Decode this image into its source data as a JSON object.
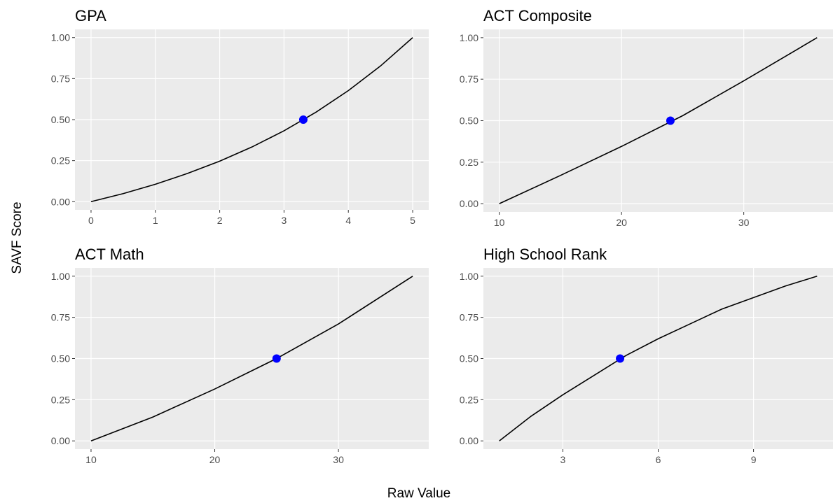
{
  "y_label": "SAVF Score",
  "x_label": "Raw Value",
  "chart_data": [
    {
      "type": "line",
      "title": "GPA",
      "x": [
        0,
        0.5,
        1,
        1.5,
        2,
        2.5,
        3,
        3.5,
        4,
        4.5,
        5
      ],
      "series": [
        {
          "color": "#000000",
          "values": [
            0,
            0.049,
            0.106,
            0.172,
            0.247,
            0.333,
            0.432,
            0.546,
            0.677,
            0.827,
            1
          ]
        }
      ],
      "point": {
        "x": 3.3,
        "y": 0.5,
        "color": "#0000ff"
      },
      "xlim": [
        -0.25,
        5.25
      ],
      "ylim": [
        -0.05,
        1.05
      ],
      "xticks": [
        0,
        1,
        2,
        3,
        4,
        5
      ],
      "yticks": [
        {
          "value": 0,
          "label": "0.00"
        },
        {
          "value": 0.25,
          "label": "0.25"
        },
        {
          "value": 0.5,
          "label": "0.50"
        },
        {
          "value": 0.75,
          "label": "0.75"
        },
        {
          "value": 1,
          "label": "1.00"
        }
      ],
      "grid": true
    },
    {
      "type": "line",
      "title": "ACT Composite",
      "x": [
        10,
        15,
        20,
        25,
        30,
        36
      ],
      "series": [
        {
          "color": "#000000",
          "values": [
            0,
            0.17,
            0.345,
            0.53,
            0.74,
            1
          ]
        }
      ],
      "point": {
        "x": 24,
        "y": 0.5,
        "color": "#0000ff"
      },
      "xlim": [
        8.7,
        37.3
      ],
      "ylim": [
        -0.05,
        1.05
      ],
      "xticks": [
        10,
        20,
        30
      ],
      "yticks": [
        {
          "value": 0,
          "label": "0.00"
        },
        {
          "value": 0.25,
          "label": "0.25"
        },
        {
          "value": 0.5,
          "label": "0.50"
        },
        {
          "value": 0.75,
          "label": "0.75"
        },
        {
          "value": 1,
          "label": "1.00"
        }
      ],
      "grid": true
    },
    {
      "type": "line",
      "title": "ACT Math",
      "x": [
        10,
        15,
        20,
        25,
        30,
        36
      ],
      "series": [
        {
          "color": "#000000",
          "values": [
            0,
            0.145,
            0.315,
            0.5,
            0.71,
            1
          ]
        }
      ],
      "point": {
        "x": 25,
        "y": 0.5,
        "color": "#0000ff"
      },
      "xlim": [
        8.7,
        37.3
      ],
      "ylim": [
        -0.05,
        1.05
      ],
      "xticks": [
        10,
        20,
        30
      ],
      "yticks": [
        {
          "value": 0,
          "label": "0.00"
        },
        {
          "value": 0.25,
          "label": "0.25"
        },
        {
          "value": 0.5,
          "label": "0.50"
        },
        {
          "value": 0.75,
          "label": "0.75"
        },
        {
          "value": 1,
          "label": "1.00"
        }
      ],
      "grid": true
    },
    {
      "type": "line",
      "title": "High School Rank",
      "x": [
        1,
        2,
        3,
        4,
        5,
        6,
        7,
        8,
        9,
        10,
        11
      ],
      "series": [
        {
          "color": "#000000",
          "values": [
            0,
            0.15,
            0.28,
            0.4,
            0.52,
            0.62,
            0.71,
            0.8,
            0.87,
            0.94,
            1
          ]
        }
      ],
      "point": {
        "x": 4.8,
        "y": 0.5,
        "color": "#0000ff"
      },
      "xlim": [
        0.5,
        11.5
      ],
      "ylim": [
        -0.05,
        1.05
      ],
      "xticks": [
        3,
        6,
        9
      ],
      "yticks": [
        {
          "value": 0,
          "label": "0.00"
        },
        {
          "value": 0.25,
          "label": "0.25"
        },
        {
          "value": 0.5,
          "label": "0.50"
        },
        {
          "value": 0.75,
          "label": "0.75"
        },
        {
          "value": 1,
          "label": "1.00"
        }
      ],
      "grid": true
    }
  ]
}
